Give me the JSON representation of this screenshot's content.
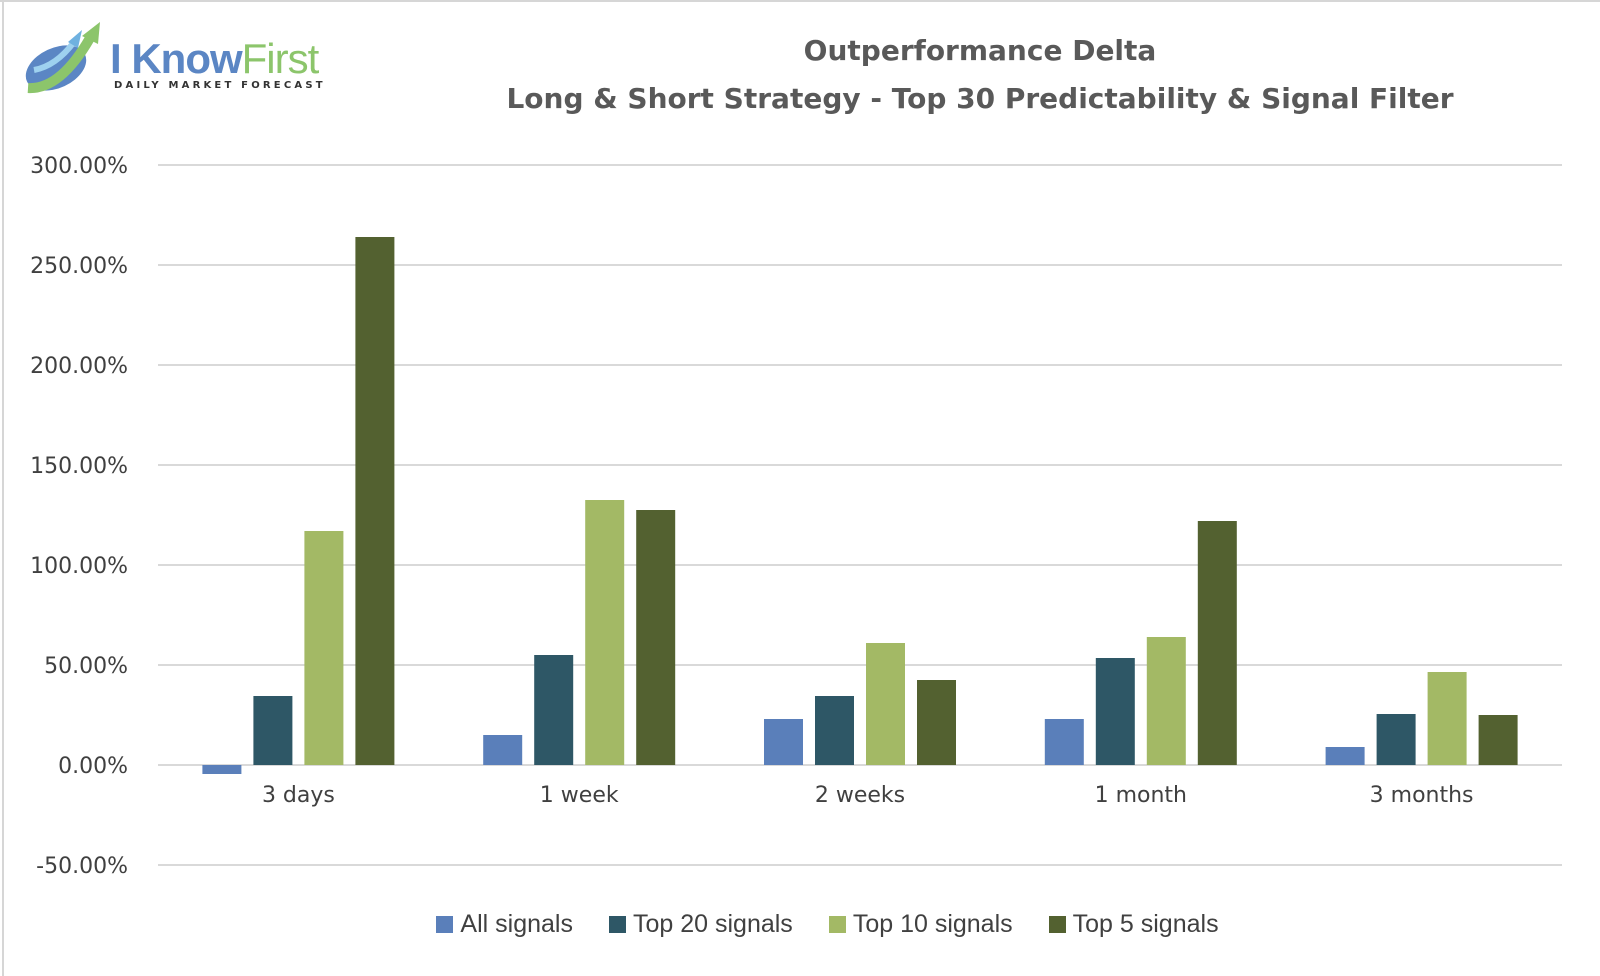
{
  "logo": {
    "brand_part1": "I Know",
    "brand_part2": "First",
    "tagline": "DAILY MARKET FORECAST"
  },
  "chart_data": {
    "type": "bar",
    "title": "Outperformance Delta",
    "subtitle": "Long & Short Strategy - Top 30 Predictability & Signal Filter",
    "xlabel": "",
    "ylabel": "",
    "ylim": [
      -50,
      300
    ],
    "yticks": [
      300,
      250,
      200,
      150,
      100,
      50,
      0,
      -50
    ],
    "ytick_labels": [
      "300.00%",
      "250.00%",
      "200.00%",
      "150.00%",
      "100.00%",
      "50.00%",
      "0.00%",
      "-50.00%"
    ],
    "grid": true,
    "legend_position": "bottom",
    "categories": [
      "3 days",
      "1 week",
      "2 weeks",
      "1 month",
      "3 months"
    ],
    "series": [
      {
        "name": "All signals",
        "color": "#5a7fba",
        "values": [
          -4.5,
          15,
          23,
          23,
          9
        ]
      },
      {
        "name": "Top 20 signals",
        "color": "#2e5766",
        "values": [
          34.5,
          55,
          34.5,
          53.5,
          25.5
        ]
      },
      {
        "name": "Top 10 signals",
        "color": "#a3b965",
        "values": [
          117,
          132.5,
          61,
          64,
          46.5
        ]
      },
      {
        "name": "Top 5 signals",
        "color": "#536130",
        "values": [
          264,
          127.5,
          42.5,
          122,
          25
        ]
      }
    ]
  }
}
